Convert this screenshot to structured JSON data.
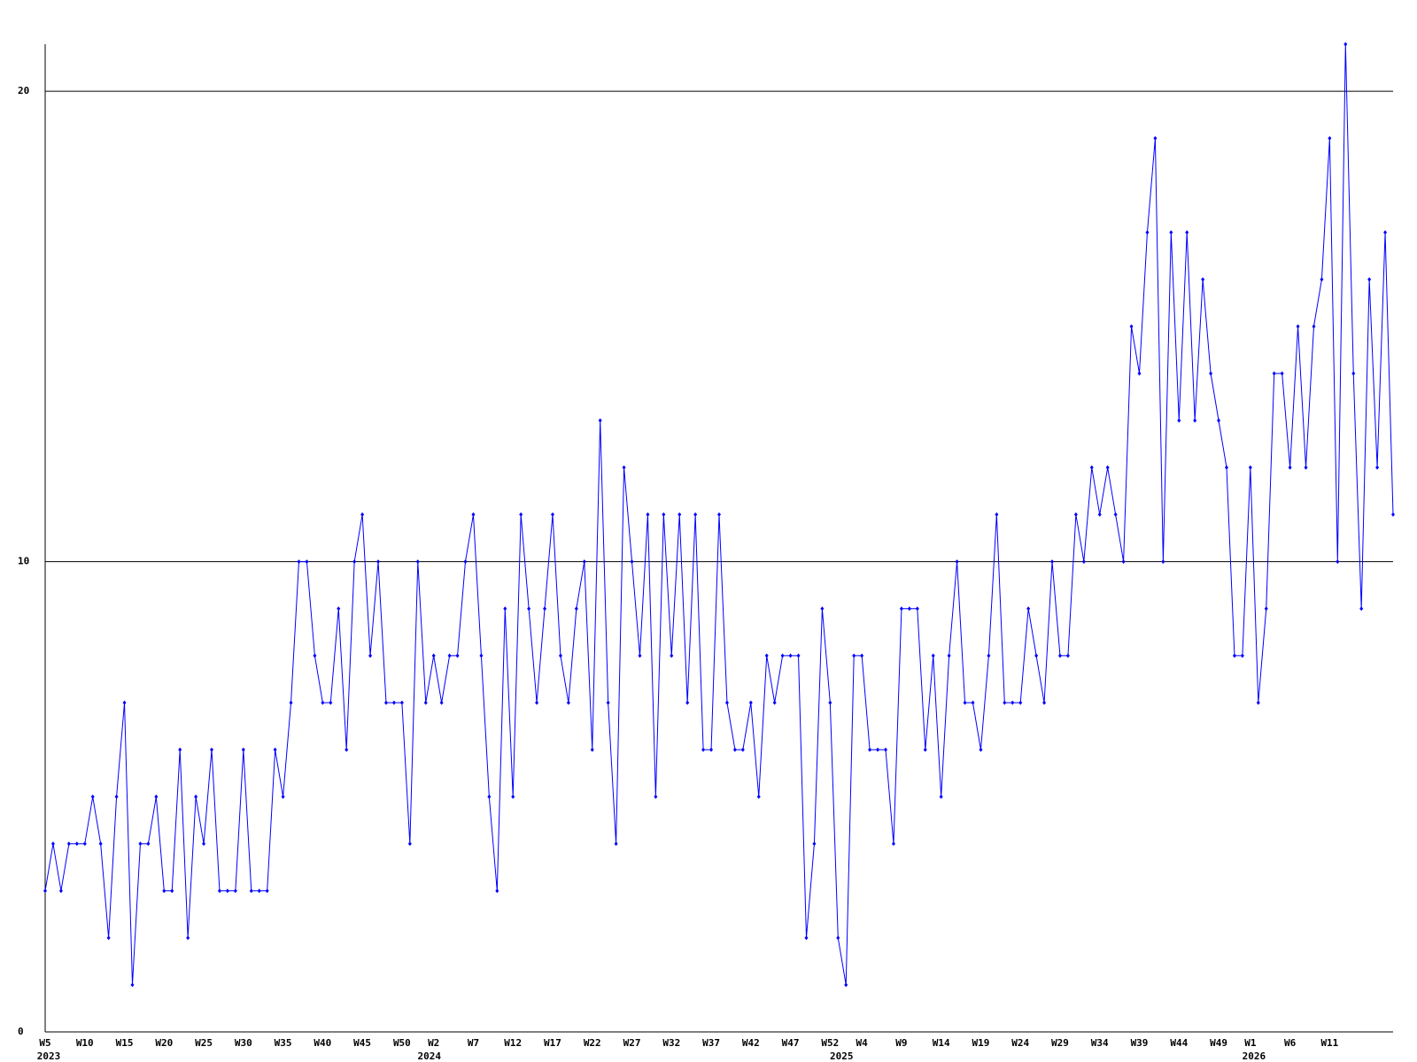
{
  "chart_data": {
    "type": "line",
    "color": "#0000ff",
    "grid": true,
    "ylim": [
      0,
      21
    ],
    "yticks": [
      0,
      10,
      20
    ],
    "categories": [
      "W5",
      null,
      null,
      null,
      null,
      "W10",
      null,
      null,
      null,
      null,
      "W15",
      null,
      null,
      null,
      null,
      "W20",
      null,
      null,
      null,
      null,
      "W25",
      null,
      null,
      null,
      null,
      "W30",
      null,
      null,
      null,
      null,
      "W35",
      null,
      null,
      null,
      null,
      "W40",
      null,
      null,
      null,
      null,
      "W45",
      null,
      null,
      null,
      null,
      "W50",
      null,
      null,
      null,
      "W2",
      null,
      null,
      null,
      null,
      "W7",
      null,
      null,
      null,
      null,
      "W12",
      null,
      null,
      null,
      null,
      "W17",
      null,
      null,
      null,
      null,
      "W22",
      null,
      null,
      null,
      null,
      "W27",
      null,
      null,
      null,
      null,
      "W32",
      null,
      null,
      null,
      null,
      "W37",
      null,
      null,
      null,
      null,
      "W42",
      null,
      null,
      null,
      null,
      "W47",
      null,
      null,
      null,
      null,
      "W52",
      null,
      null,
      null,
      "W4",
      null,
      null,
      null,
      null,
      "W9",
      null,
      null,
      null,
      null,
      "W14",
      null,
      null,
      null,
      null,
      "W19",
      null,
      null,
      null,
      null,
      "W24",
      null,
      null,
      null,
      null,
      "W29",
      null,
      null,
      null,
      null,
      "W34",
      null,
      null,
      null,
      null,
      "W39",
      null,
      null,
      null,
      null,
      "W44",
      null,
      null,
      null,
      null,
      "W49",
      null,
      null,
      null,
      "W1",
      null,
      null,
      null,
      null,
      "W6",
      null,
      null,
      null,
      null,
      "W11",
      null,
      null,
      null,
      null,
      null,
      null,
      null,
      null
    ],
    "category_years": [
      "2023",
      null,
      null,
      null,
      null,
      null,
      null,
      null,
      null,
      null,
      null,
      null,
      null,
      null,
      null,
      null,
      null,
      null,
      null,
      null,
      null,
      null,
      null,
      null,
      null,
      null,
      null,
      null,
      null,
      null,
      null,
      null,
      null,
      null,
      null,
      null,
      null,
      null,
      null,
      null,
      null,
      null,
      null,
      null,
      null,
      null,
      null,
      null,
      "2024",
      null,
      null,
      null,
      null,
      null,
      null,
      null,
      null,
      null,
      null,
      null,
      null,
      null,
      null,
      null,
      null,
      null,
      null,
      null,
      null,
      null,
      null,
      null,
      null,
      null,
      null,
      null,
      null,
      null,
      null,
      null,
      null,
      null,
      null,
      null,
      null,
      null,
      null,
      null,
      null,
      null,
      null,
      null,
      null,
      null,
      null,
      null,
      null,
      null,
      null,
      null,
      "2025",
      null,
      null,
      null,
      null,
      null,
      null,
      null,
      null,
      null,
      null,
      null,
      null,
      null,
      null,
      null,
      null,
      null,
      null,
      null,
      null,
      null,
      null,
      null,
      null,
      null,
      null,
      null,
      null,
      null,
      null,
      null,
      null,
      null,
      null,
      null,
      null,
      null,
      null,
      null,
      null,
      null,
      null,
      null,
      null,
      null,
      null,
      null,
      null,
      null,
      null,
      null,
      "2026",
      null,
      null,
      null,
      null,
      null,
      null,
      null,
      null,
      null,
      null,
      null,
      null,
      null,
      null,
      null,
      null,
      null,
      null
    ],
    "values": [
      3,
      4,
      3,
      4,
      4,
      4,
      5,
      4,
      2,
      5,
      7,
      1,
      4,
      4,
      5,
      3,
      3,
      6,
      2,
      5,
      4,
      6,
      3,
      3,
      3,
      6,
      3,
      3,
      3,
      6,
      5,
      7,
      10,
      10,
      8,
      7,
      7,
      9,
      6,
      10,
      11,
      8,
      10,
      7,
      7,
      7,
      4,
      10,
      7,
      8,
      7,
      8,
      8,
      10,
      11,
      8,
      5,
      3,
      9,
      5,
      11,
      9,
      7,
      9,
      11,
      8,
      7,
      9,
      10,
      6,
      13,
      7,
      4,
      12,
      10,
      8,
      11,
      5,
      11,
      8,
      11,
      7,
      11,
      6,
      6,
      11,
      7,
      6,
      6,
      7,
      5,
      8,
      7,
      8,
      8,
      8,
      2,
      4,
      9,
      7,
      2,
      1,
      8,
      8,
      6,
      6,
      6,
      4,
      9,
      9,
      9,
      6,
      8,
      5,
      8,
      10,
      7,
      7,
      6,
      8,
      11,
      7,
      7,
      7,
      9,
      8,
      7,
      10,
      8,
      8,
      11,
      10,
      12,
      11,
      12,
      11,
      10,
      15,
      14,
      17,
      19,
      10,
      17,
      13,
      17,
      13,
      16,
      14,
      13,
      12,
      8,
      8,
      12,
      7,
      9,
      14,
      14,
      12,
      15,
      12,
      15,
      16,
      19,
      10,
      21,
      14,
      9,
      16,
      12,
      17,
      11
    ]
  }
}
